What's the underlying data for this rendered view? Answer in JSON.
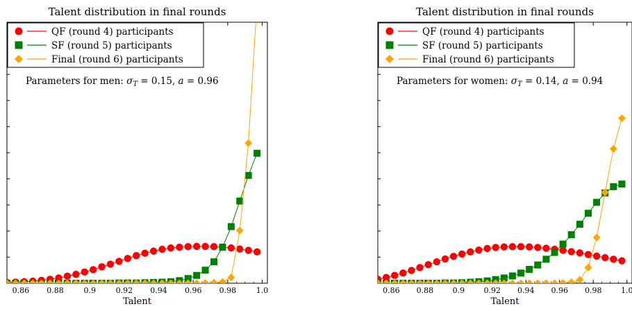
{
  "chart_data": [
    {
      "type": "line",
      "title": "Talent distribution in final rounds",
      "xlabel": "Talent",
      "ylabel": "",
      "xlim": [
        0.852,
        1.003
      ],
      "ylim": [
        0,
        1
      ],
      "x_ticks": [
        "0.86",
        "0.88",
        "0.9",
        "0.92",
        "0.94",
        "0.96",
        "0.98",
        "1.0"
      ],
      "legend": "top-left",
      "grid": false,
      "annotation": "Parameters for men: σ_T = 0.15, a = 0.96",
      "series": [
        {
          "name": "QF (round 4) participants",
          "color": "#ff0000",
          "marker": "circle",
          "x": [
            0.852,
            0.857,
            0.862,
            0.867,
            0.872,
            0.877,
            0.882,
            0.887,
            0.892,
            0.897,
            0.902,
            0.907,
            0.912,
            0.917,
            0.922,
            0.927,
            0.932,
            0.937,
            0.942,
            0.947,
            0.952,
            0.957,
            0.962,
            0.967,
            0.972,
            0.977,
            0.982,
            0.987,
            0.992,
            0.997
          ],
          "values": [
            0.003,
            0.004,
            0.006,
            0.008,
            0.011,
            0.015,
            0.02,
            0.027,
            0.034,
            0.043,
            0.052,
            0.063,
            0.073,
            0.084,
            0.095,
            0.106,
            0.115,
            0.123,
            0.13,
            0.135,
            0.138,
            0.14,
            0.141,
            0.141,
            0.14,
            0.138,
            0.135,
            0.131,
            0.126,
            0.12
          ]
        },
        {
          "name": "SF (round 5) participants",
          "color": "#008000",
          "marker": "square",
          "x": [
            0.852,
            0.857,
            0.862,
            0.867,
            0.872,
            0.877,
            0.882,
            0.887,
            0.892,
            0.897,
            0.902,
            0.907,
            0.912,
            0.917,
            0.922,
            0.927,
            0.932,
            0.937,
            0.942,
            0.947,
            0.952,
            0.957,
            0.962,
            0.967,
            0.972,
            0.977,
            0.982,
            0.987,
            0.992,
            0.997
          ],
          "values": [
            0,
            0,
            0,
            0,
            0,
            0,
            0,
            0,
            0,
            0,
            0,
            0,
            0,
            0.001,
            0.001,
            0.001,
            0.002,
            0.003,
            0.004,
            0.006,
            0.01,
            0.018,
            0.03,
            0.05,
            0.082,
            0.138,
            0.217,
            0.315,
            0.413,
            0.498
          ]
        },
        {
          "name": "Final (round 6) participants",
          "color": "#ffa500",
          "marker": "diamond",
          "x": [
            0.852,
            0.857,
            0.862,
            0.867,
            0.872,
            0.877,
            0.882,
            0.887,
            0.892,
            0.897,
            0.902,
            0.907,
            0.912,
            0.917,
            0.922,
            0.927,
            0.932,
            0.937,
            0.942,
            0.947,
            0.952,
            0.957,
            0.962,
            0.967,
            0.972,
            0.977,
            0.982,
            0.987,
            0.992,
            0.997
          ],
          "values": [
            0,
            0,
            0,
            0,
            0,
            0,
            0,
            0,
            0,
            0,
            0,
            0,
            0,
            0,
            0,
            0,
            0,
            0,
            0,
            0,
            0,
            0,
            0,
            0.001,
            0.002,
            0.005,
            0.022,
            0.202,
            0.537,
            1.08
          ]
        }
      ]
    },
    {
      "type": "line",
      "title": "Talent distribution in final rounds",
      "xlabel": "Talent",
      "ylabel": "",
      "xlim": [
        0.852,
        1.003
      ],
      "ylim": [
        0,
        1
      ],
      "x_ticks": [
        "0.86",
        "0.88",
        "0.9",
        "0.92",
        "0.94",
        "0.96",
        "0.98",
        "1.0"
      ],
      "legend": "top-left",
      "grid": false,
      "annotation": "Parameters for women: σ_T = 0.14, a = 0.94",
      "series": [
        {
          "name": "QF (round 4) participants",
          "color": "#ff0000",
          "marker": "circle",
          "x": [
            0.852,
            0.857,
            0.862,
            0.867,
            0.872,
            0.877,
            0.882,
            0.887,
            0.892,
            0.897,
            0.902,
            0.907,
            0.912,
            0.917,
            0.922,
            0.927,
            0.932,
            0.937,
            0.942,
            0.947,
            0.952,
            0.957,
            0.962,
            0.967,
            0.972,
            0.977,
            0.982,
            0.987,
            0.992,
            0.997
          ],
          "values": [
            0.015,
            0.022,
            0.03,
            0.039,
            0.049,
            0.06,
            0.071,
            0.082,
            0.093,
            0.103,
            0.112,
            0.12,
            0.127,
            0.133,
            0.137,
            0.139,
            0.14,
            0.14,
            0.139,
            0.137,
            0.134,
            0.13,
            0.126,
            0.121,
            0.116,
            0.11,
            0.104,
            0.098,
            0.092,
            0.086
          ]
        },
        {
          "name": "SF (round 5) participants",
          "color": "#008000",
          "marker": "square",
          "x": [
            0.852,
            0.857,
            0.862,
            0.867,
            0.872,
            0.877,
            0.882,
            0.887,
            0.892,
            0.897,
            0.902,
            0.907,
            0.912,
            0.917,
            0.922,
            0.927,
            0.932,
            0.937,
            0.942,
            0.947,
            0.952,
            0.957,
            0.962,
            0.967,
            0.972,
            0.977,
            0.982,
            0.987,
            0.992,
            0.997
          ],
          "values": [
            0,
            0,
            0,
            0,
            0,
            0,
            0,
            0,
            0.001,
            0.001,
            0.002,
            0.004,
            0.006,
            0.009,
            0.014,
            0.02,
            0.028,
            0.039,
            0.053,
            0.07,
            0.092,
            0.118,
            0.15,
            0.186,
            0.226,
            0.268,
            0.31,
            0.346,
            0.37,
            0.38
          ]
        },
        {
          "name": "Final (round 6) participants",
          "color": "#ffa500",
          "marker": "diamond",
          "x": [
            0.852,
            0.857,
            0.862,
            0.867,
            0.872,
            0.877,
            0.882,
            0.887,
            0.892,
            0.897,
            0.902,
            0.907,
            0.912,
            0.917,
            0.922,
            0.927,
            0.932,
            0.937,
            0.942,
            0.947,
            0.952,
            0.957,
            0.962,
            0.967,
            0.972,
            0.977,
            0.982,
            0.987,
            0.992,
            0.997
          ],
          "values": [
            0,
            0,
            0,
            0,
            0,
            0,
            0,
            0,
            0,
            0,
            0,
            0,
            0,
            0,
            0,
            0,
            0,
            0,
            0,
            0,
            0,
            0,
            0.001,
            0.004,
            0.013,
            0.06,
            0.175,
            0.348,
            0.515,
            0.632
          ]
        }
      ]
    }
  ]
}
